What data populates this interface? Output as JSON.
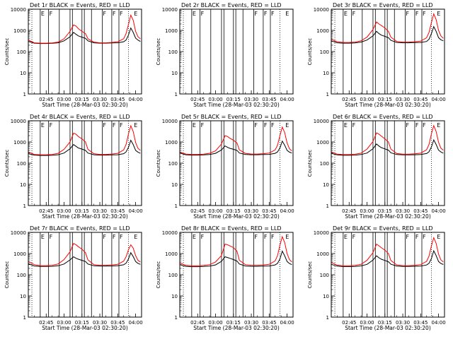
{
  "colors": {
    "events": "#000000",
    "lld": "#ff0000",
    "axis": "#000000",
    "background": "#ffffff"
  },
  "panel_titles": [
    "Det 1r BLACK = Events, RED = LLD",
    "Det 2r BLACK = Events, RED = LLD",
    "Det 3r BLACK = Events, RED = LLD",
    "Det 4r BLACK = Events, RED = LLD",
    "Det 5r BLACK = Events, RED = LLD",
    "Det 6r BLACK = Events, RED = LLD",
    "Det 7r BLACK = Events, RED = LLD",
    "Det 8r BLACK = Events, RED = LLD",
    "Det 9r BLACK = Events, RED = LLD"
  ],
  "ylabel": "Counts/sec",
  "xlabel": "Start Time (28-Mar-03 02:30:20)",
  "x_tick_labels": [
    "02:45",
    "03:00",
    "03:15",
    "03:30",
    "03:45",
    "04:00"
  ],
  "y_tick_labels": [
    "1",
    "10",
    "100",
    "1000",
    "10000"
  ],
  "flag_markers": [
    "E",
    "F",
    "F",
    "F",
    "F",
    "E"
  ],
  "chart_data": [
    {
      "type": "line",
      "title": "Det 1r BLACK = Events, RED = LLD",
      "xlabel": "Start Time (28-Mar-03 02:30:20)",
      "ylabel": "Counts/sec",
      "x_unit": "minutes after 02:30:20",
      "x_range": [
        0,
        95
      ],
      "ylim": [
        1,
        10000
      ],
      "yscale": "log",
      "x": [
        0,
        5,
        10,
        15,
        20,
        25,
        30,
        35,
        38,
        40,
        42,
        45,
        48,
        50,
        55,
        60,
        65,
        70,
        75,
        80,
        82,
        84,
        86,
        88,
        90,
        92,
        94
      ],
      "series": [
        {
          "name": "Events",
          "values": [
            300,
            250,
            240,
            240,
            245,
            260,
            320,
            500,
            800,
            650,
            550,
            480,
            420,
            320,
            260,
            250,
            250,
            255,
            260,
            290,
            350,
            600,
            1300,
            800,
            430,
            350,
            300
          ]
        },
        {
          "name": "LLD",
          "values": [
            350,
            260,
            250,
            250,
            255,
            280,
            400,
            900,
            1800,
            1600,
            1200,
            900,
            700,
            400,
            280,
            260,
            260,
            270,
            290,
            400,
            700,
            1900,
            5200,
            3000,
            900,
            500,
            400
          ]
        }
      ],
      "vertical_lines": [
        10,
        17,
        26,
        35,
        37,
        45,
        47,
        53,
        62,
        70,
        76
      ]
    },
    {
      "type": "line",
      "title": "Det 2r BLACK = Events, RED = LLD",
      "xlabel": "Start Time (28-Mar-03 02:30:20)",
      "ylabel": "Counts/sec",
      "x_unit": "minutes after 02:30:20",
      "x_range": [
        0,
        95
      ],
      "ylim": [
        1,
        10000
      ],
      "yscale": "log",
      "x": [],
      "series": [],
      "vertical_lines": [
        10,
        17,
        26,
        35,
        37,
        45,
        47,
        53,
        62,
        70,
        76
      ]
    },
    {
      "type": "line",
      "title": "Det 3r BLACK = Events, RED = LLD",
      "xlabel": "Start Time (28-Mar-03 02:30:20)",
      "ylabel": "Counts/sec",
      "x_unit": "minutes after 02:30:20",
      "x_range": [
        0,
        95
      ],
      "ylim": [
        1,
        10000
      ],
      "yscale": "log",
      "x": [
        0,
        5,
        10,
        15,
        20,
        25,
        30,
        35,
        38,
        40,
        42,
        45,
        48,
        50,
        55,
        60,
        65,
        70,
        75,
        80,
        82,
        84,
        86,
        88,
        90,
        92,
        94
      ],
      "series": [
        {
          "name": "Events",
          "values": [
            320,
            260,
            250,
            250,
            255,
            280,
            350,
            550,
            900,
            700,
            600,
            520,
            450,
            340,
            270,
            260,
            260,
            265,
            270,
            300,
            380,
            700,
            1500,
            900,
            450,
            360,
            320
          ]
        },
        {
          "name": "LLD",
          "values": [
            380,
            290,
            270,
            270,
            280,
            320,
            480,
            1100,
            2500,
            2000,
            1700,
            1300,
            900,
            480,
            300,
            280,
            280,
            290,
            310,
            450,
            800,
            2300,
            6000,
            3200,
            1000,
            550,
            420
          ]
        }
      ],
      "vertical_lines": [
        10,
        17,
        26,
        35,
        37,
        45,
        47,
        53,
        62,
        70,
        76
      ]
    },
    {
      "type": "line",
      "title": "Det 4r BLACK = Events, RED = LLD",
      "xlabel": "Start Time (28-Mar-03 02:30:20)",
      "ylabel": "Counts/sec",
      "x_unit": "minutes after 02:30:20",
      "x_range": [
        0,
        95
      ],
      "ylim": [
        1,
        10000
      ],
      "yscale": "log",
      "x": [
        0,
        5,
        10,
        15,
        20,
        25,
        30,
        35,
        38,
        40,
        42,
        45,
        48,
        50,
        55,
        60,
        65,
        70,
        75,
        80,
        82,
        84,
        86,
        88,
        90,
        92,
        94
      ],
      "series": [
        {
          "name": "Events",
          "values": [
            280,
            240,
            230,
            230,
            235,
            250,
            300,
            480,
            750,
            620,
            520,
            460,
            400,
            300,
            250,
            240,
            240,
            245,
            250,
            280,
            340,
            560,
            1200,
            750,
            400,
            330,
            290
          ]
        },
        {
          "name": "LLD",
          "values": [
            330,
            260,
            250,
            250,
            260,
            290,
            450,
            1000,
            2600,
            2300,
            1800,
            1400,
            1000,
            450,
            280,
            260,
            260,
            270,
            290,
            420,
            750,
            2400,
            5800,
            3100,
            950,
            500,
            400
          ]
        }
      ],
      "vertical_lines": [
        10,
        17,
        26,
        35,
        37,
        45,
        47,
        53,
        62,
        70,
        76
      ]
    },
    {
      "type": "line",
      "title": "Det 5r BLACK = Events, RED = LLD",
      "xlabel": "Start Time (28-Mar-03 02:30:20)",
      "ylabel": "Counts/sec",
      "x_unit": "minutes after 02:30:20",
      "x_range": [
        0,
        95
      ],
      "ylim": [
        1,
        10000
      ],
      "yscale": "log",
      "x": [
        0,
        5,
        10,
        15,
        20,
        25,
        30,
        35,
        38,
        40,
        42,
        45,
        48,
        50,
        55,
        60,
        65,
        70,
        75,
        80,
        82,
        84,
        86,
        88,
        90,
        92,
        94
      ],
      "series": [
        {
          "name": "Events",
          "values": [
            300,
            250,
            240,
            240,
            245,
            255,
            290,
            420,
            650,
            560,
            500,
            450,
            400,
            300,
            260,
            250,
            250,
            255,
            260,
            290,
            340,
            520,
            1100,
            700,
            400,
            330,
            300
          ]
        },
        {
          "name": "LLD",
          "values": [
            340,
            270,
            260,
            260,
            265,
            290,
            380,
            800,
            2000,
            1800,
            1500,
            1200,
            900,
            420,
            290,
            270,
            270,
            280,
            300,
            420,
            700,
            2000,
            5000,
            2800,
            900,
            480,
            380
          ]
        }
      ],
      "vertical_lines": [
        10,
        17,
        26,
        35,
        37,
        45,
        47,
        53,
        62,
        70,
        76
      ]
    },
    {
      "type": "line",
      "title": "Det 6r BLACK = Events, RED = LLD",
      "xlabel": "Start Time (28-Mar-03 02:30:20)",
      "ylabel": "Counts/sec",
      "x_unit": "minutes after 02:30:20",
      "x_range": [
        0,
        95
      ],
      "ylim": [
        1,
        10000
      ],
      "yscale": "log",
      "x": [
        0,
        5,
        10,
        15,
        20,
        25,
        30,
        35,
        38,
        40,
        42,
        45,
        48,
        50,
        55,
        60,
        65,
        70,
        75,
        80,
        82,
        84,
        86,
        88,
        90,
        92,
        94
      ],
      "series": [
        {
          "name": "Events",
          "values": [
            290,
            245,
            235,
            235,
            240,
            255,
            300,
            480,
            800,
            640,
            540,
            470,
            410,
            310,
            255,
            245,
            245,
            250,
            255,
            285,
            345,
            580,
            1250,
            760,
            410,
            335,
            295
          ]
        },
        {
          "name": "LLD",
          "values": [
            340,
            265,
            255,
            255,
            265,
            295,
            460,
            1050,
            2700,
            2300,
            1900,
            1400,
            1000,
            460,
            285,
            265,
            265,
            275,
            295,
            430,
            760,
            2400,
            5900,
            3100,
            960,
            510,
            410
          ]
        }
      ],
      "vertical_lines": [
        10,
        17,
        26,
        35,
        37,
        45,
        47,
        53,
        62,
        70,
        76
      ]
    },
    {
      "type": "line",
      "title": "Det 7r BLACK = Events, RED = LLD",
      "xlabel": "Start Time (28-Mar-03 02:30:20)",
      "ylabel": "Counts/sec",
      "x_unit": "minutes after 02:30:20",
      "x_range": [
        0,
        95
      ],
      "ylim": [
        1,
        10000
      ],
      "yscale": "log",
      "x": [
        0,
        5,
        10,
        15,
        20,
        25,
        30,
        35,
        38,
        40,
        42,
        45,
        48,
        50,
        55,
        60,
        65,
        70,
        75,
        80,
        82,
        84,
        86,
        88,
        90,
        92,
        94
      ],
      "series": [
        {
          "name": "Events",
          "values": [
            330,
            260,
            245,
            245,
            250,
            265,
            320,
            500,
            700,
            600,
            540,
            480,
            420,
            320,
            265,
            255,
            255,
            260,
            265,
            295,
            350,
            560,
            1100,
            720,
            420,
            345,
            310
          ]
        },
        {
          "name": "LLD",
          "values": [
            420,
            300,
            270,
            270,
            280,
            320,
            520,
            1200,
            3000,
            2600,
            2100,
            1600,
            1100,
            500,
            300,
            280,
            280,
            290,
            310,
            440,
            700,
            1500,
            2600,
            1800,
            800,
            480,
            400
          ]
        }
      ],
      "vertical_lines": [
        10,
        17,
        26,
        35,
        37,
        45,
        47,
        53,
        62,
        70,
        76
      ]
    },
    {
      "type": "line",
      "title": "Det 8r BLACK = Events, RED = LLD",
      "xlabel": "Start Time (28-Mar-03 02:30:20)",
      "ylabel": "Counts/sec",
      "x_unit": "minutes after 02:30:20",
      "x_range": [
        0,
        95
      ],
      "ylim": [
        1,
        10000
      ],
      "yscale": "log",
      "x": [
        0,
        5,
        10,
        15,
        20,
        25,
        30,
        35,
        38,
        40,
        42,
        45,
        48,
        50,
        55,
        60,
        65,
        70,
        75,
        80,
        82,
        84,
        86,
        88,
        90,
        92,
        94
      ],
      "series": [
        {
          "name": "Events",
          "values": [
            300,
            250,
            240,
            240,
            245,
            255,
            290,
            430,
            700,
            650,
            600,
            520,
            440,
            320,
            260,
            250,
            250,
            255,
            260,
            290,
            345,
            560,
            1300,
            780,
            420,
            340,
            300
          ]
        },
        {
          "name": "LLD",
          "values": [
            360,
            280,
            265,
            265,
            275,
            300,
            400,
            800,
            2800,
            2600,
            2300,
            1900,
            1300,
            480,
            300,
            280,
            280,
            290,
            310,
            450,
            800,
            2500,
            6200,
            3300,
            1000,
            520,
            400
          ]
        }
      ],
      "vertical_lines": [
        10,
        17,
        26,
        35,
        37,
        45,
        47,
        53,
        62,
        70,
        76
      ]
    },
    {
      "type": "line",
      "title": "Det 9r BLACK = Events, RED = LLD",
      "xlabel": "Start Time (28-Mar-03 02:30:20)",
      "ylabel": "Counts/sec",
      "x_unit": "minutes after 02:30:20",
      "x_range": [
        0,
        95
      ],
      "ylim": [
        1,
        10000
      ],
      "yscale": "log",
      "x": [
        0,
        5,
        10,
        15,
        20,
        25,
        30,
        35,
        38,
        40,
        42,
        45,
        48,
        50,
        55,
        60,
        65,
        70,
        75,
        80,
        82,
        84,
        86,
        88,
        90,
        92,
        94
      ],
      "series": [
        {
          "name": "Events",
          "values": [
            310,
            255,
            242,
            242,
            248,
            262,
            310,
            490,
            780,
            630,
            540,
            470,
            410,
            315,
            258,
            248,
            248,
            252,
            258,
            288,
            348,
            580,
            1350,
            800,
            420,
            340,
            305
          ]
        },
        {
          "name": "LLD",
          "values": [
            380,
            285,
            265,
            265,
            275,
            310,
            480,
            1100,
            2800,
            2300,
            1900,
            1450,
            1000,
            470,
            290,
            270,
            270,
            280,
            300,
            430,
            760,
            2300,
            5600,
            3000,
            940,
            500,
            400
          ]
        }
      ],
      "vertical_lines": [
        10,
        17,
        26,
        35,
        37,
        45,
        47,
        53,
        62,
        70,
        76
      ]
    }
  ]
}
